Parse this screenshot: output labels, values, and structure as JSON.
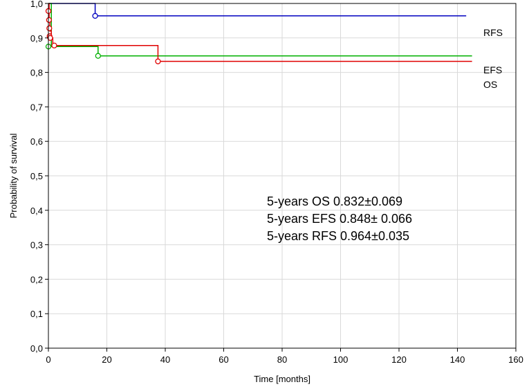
{
  "chart_data": {
    "type": "line",
    "step": true,
    "title": "",
    "xlabel": "Time [months]",
    "ylabel": "Probability of survival",
    "xlim": [
      0,
      160
    ],
    "ylim": [
      0,
      1.0
    ],
    "x_ticks": [
      0,
      20,
      40,
      60,
      80,
      100,
      120,
      140,
      160
    ],
    "y_ticks": [
      0.0,
      0.1,
      0.2,
      0.3,
      0.4,
      0.5,
      0.6,
      0.7,
      0.8,
      0.9,
      1.0
    ],
    "y_tick_labels": [
      "0,0",
      "0,1",
      "0,2",
      "0,3",
      "0,4",
      "0,5",
      "0,6",
      "0,7",
      "0,8",
      "0,9",
      "1,0"
    ],
    "grid": true,
    "series": [
      {
        "name": "RFS",
        "color": "#0000c0",
        "x": [
          0,
          16,
          143
        ],
        "y": [
          1.0,
          0.964,
          0.964
        ],
        "censor_x": [
          16
        ],
        "censor_y": [
          0.964
        ]
      },
      {
        "name": "EFS",
        "color": "#00b000",
        "x": [
          0,
          1,
          17,
          145
        ],
        "y": [
          1.0,
          0.875,
          0.848,
          0.848
        ],
        "censor_x": [
          0,
          17
        ],
        "censor_y": [
          0.875,
          0.848
        ]
      },
      {
        "name": "OS",
        "color": "#e00000",
        "x": [
          0,
          0.25,
          0.5,
          1,
          1.5,
          37.5,
          145
        ],
        "y": [
          1.0,
          0.95,
          0.92,
          0.9,
          0.878,
          0.832,
          0.832
        ],
        "censor_x": [
          0,
          0.2,
          0.3,
          0.4,
          0.6,
          2,
          37.5
        ],
        "censor_y": [
          0.978,
          0.952,
          0.928,
          0.905,
          0.9,
          0.878,
          0.832
        ]
      }
    ],
    "annotations": [
      "5-years OS 0.832±0.069",
      "5-years EFS 0.848± 0.066",
      "5-years RFS 0.964±0.035"
    ]
  }
}
